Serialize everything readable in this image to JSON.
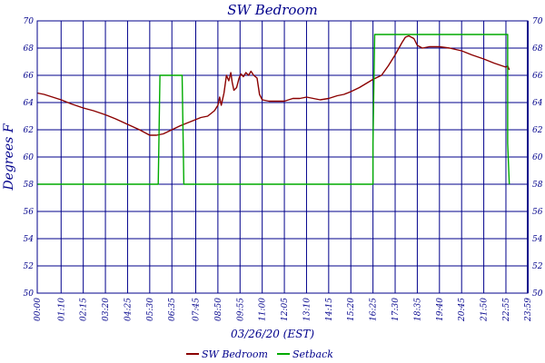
{
  "chart_data": {
    "type": "line",
    "title": "SW Bedroom",
    "xlabel": "03/26/20 (EST)",
    "ylabel": "Degrees F",
    "ylim": [
      50,
      70
    ],
    "yticks": [
      "50",
      "52",
      "54",
      "56",
      "58",
      "60",
      "62",
      "64",
      "66",
      "68",
      "70"
    ],
    "y_axis_right": true,
    "xlim": [
      "00:00",
      "23:59"
    ],
    "xticks": [
      "00:00",
      "01:10",
      "02:15",
      "03:20",
      "04:25",
      "05:30",
      "06:35",
      "07:45",
      "08:50",
      "09:55",
      "11:00",
      "12:05",
      "13:10",
      "14:15",
      "15:20",
      "16:25",
      "17:30",
      "18:35",
      "19:40",
      "20:45",
      "21:50",
      "22:55",
      "23:59"
    ],
    "grid": true,
    "legend": "bottom-center",
    "series": [
      {
        "name": "SW Bedroom",
        "color": "#8b0000",
        "points": [
          [
            "00:00",
            64.7
          ],
          [
            "00:20",
            64.6
          ],
          [
            "00:45",
            64.4
          ],
          [
            "01:10",
            64.2
          ],
          [
            "01:40",
            63.9
          ],
          [
            "02:15",
            63.6
          ],
          [
            "02:45",
            63.4
          ],
          [
            "03:20",
            63.1
          ],
          [
            "03:50",
            62.8
          ],
          [
            "04:25",
            62.4
          ],
          [
            "05:00",
            62.0
          ],
          [
            "05:30",
            61.6
          ],
          [
            "05:50",
            61.6
          ],
          [
            "06:10",
            61.7
          ],
          [
            "06:35",
            62.0
          ],
          [
            "07:00",
            62.3
          ],
          [
            "07:30",
            62.6
          ],
          [
            "08:00",
            62.9
          ],
          [
            "08:20",
            63.0
          ],
          [
            "08:40",
            63.4
          ],
          [
            "08:50",
            63.8
          ],
          [
            "08:55",
            64.4
          ],
          [
            "09:00",
            63.8
          ],
          [
            "09:08",
            64.7
          ],
          [
            "09:15",
            66.0
          ],
          [
            "09:22",
            65.6
          ],
          [
            "09:28",
            66.2
          ],
          [
            "09:32",
            65.5
          ],
          [
            "09:37",
            64.9
          ],
          [
            "09:45",
            65.1
          ],
          [
            "09:52",
            65.8
          ],
          [
            "09:58",
            66.1
          ],
          [
            "10:05",
            65.9
          ],
          [
            "10:12",
            66.2
          ],
          [
            "10:20",
            66.0
          ],
          [
            "10:27",
            66.3
          ],
          [
            "10:35",
            66.0
          ],
          [
            "10:45",
            65.8
          ],
          [
            "10:52",
            64.6
          ],
          [
            "11:00",
            64.2
          ],
          [
            "11:20",
            64.1
          ],
          [
            "11:45",
            64.1
          ],
          [
            "12:05",
            64.1
          ],
          [
            "12:30",
            64.3
          ],
          [
            "12:50",
            64.3
          ],
          [
            "13:10",
            64.4
          ],
          [
            "13:30",
            64.3
          ],
          [
            "13:50",
            64.2
          ],
          [
            "14:15",
            64.3
          ],
          [
            "14:40",
            64.5
          ],
          [
            "15:00",
            64.6
          ],
          [
            "15:20",
            64.8
          ],
          [
            "15:45",
            65.1
          ],
          [
            "16:05",
            65.4
          ],
          [
            "16:25",
            65.7
          ],
          [
            "16:50",
            66.0
          ],
          [
            "17:10",
            66.7
          ],
          [
            "17:30",
            67.5
          ],
          [
            "17:50",
            68.4
          ],
          [
            "18:00",
            68.8
          ],
          [
            "18:10",
            68.9
          ],
          [
            "18:25",
            68.7
          ],
          [
            "18:35",
            68.2
          ],
          [
            "18:50",
            68.0
          ],
          [
            "19:10",
            68.1
          ],
          [
            "19:40",
            68.1
          ],
          [
            "20:10",
            68.0
          ],
          [
            "20:45",
            67.8
          ],
          [
            "21:15",
            67.5
          ],
          [
            "21:50",
            67.2
          ],
          [
            "22:20",
            66.9
          ],
          [
            "22:55",
            66.6
          ],
          [
            "23:00",
            66.7
          ],
          [
            "23:05",
            66.4
          ]
        ]
      },
      {
        "name": "Setback",
        "color": "#00aa00",
        "points": [
          [
            "00:00",
            58
          ],
          [
            "05:55",
            58
          ],
          [
            "06:00",
            66
          ],
          [
            "07:05",
            66
          ],
          [
            "07:10",
            58
          ],
          [
            "16:25",
            58
          ],
          [
            "16:25",
            61
          ],
          [
            "16:30",
            69
          ],
          [
            "23:00",
            69
          ],
          [
            "23:00",
            61
          ],
          [
            "23:05",
            58
          ]
        ]
      }
    ]
  }
}
